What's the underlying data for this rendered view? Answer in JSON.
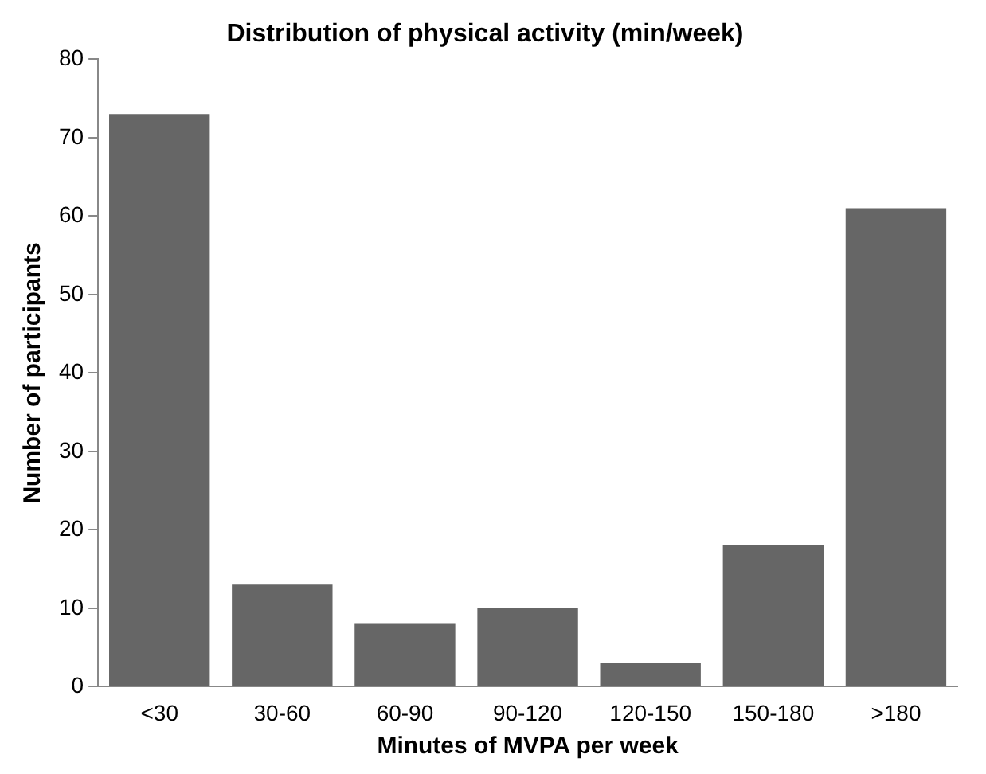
{
  "chart_data": {
    "type": "bar",
    "title": "Distribution of physical activity (min/week)",
    "xlabel": "Minutes of MVPA per week",
    "ylabel": "Number of participants",
    "categories": [
      "<30",
      "30-60",
      "60-90",
      "90-120",
      "120-150",
      "150-180",
      ">180"
    ],
    "values": [
      73,
      13,
      8,
      10,
      3,
      18,
      61
    ],
    "color": "#666666",
    "ylim": [
      0,
      80
    ],
    "yticks": [
      0,
      10,
      20,
      30,
      40,
      50,
      60,
      70,
      80
    ],
    "grid": false,
    "legend": false
  }
}
